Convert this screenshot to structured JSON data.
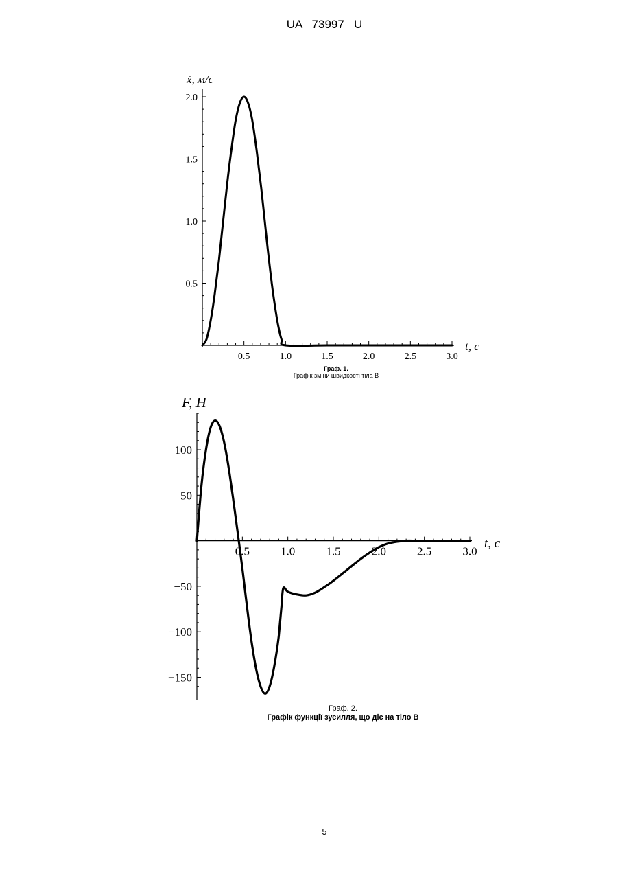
{
  "header": {
    "text": "UA   73997   U"
  },
  "page_number": "5",
  "chart_data": [
    {
      "type": "line",
      "ylabel": "ẋ, м/с",
      "xlabel": "t, c",
      "x_ticks": [
        "0.5",
        "1.0",
        "1.5",
        "2.0",
        "2.5",
        "3.0"
      ],
      "y_ticks": [
        "0.5",
        "1.0",
        "1.5",
        "2.0"
      ],
      "xlim": [
        0,
        3.0
      ],
      "ylim": [
        0,
        2.0
      ],
      "x": [
        0,
        0.05,
        0.1,
        0.15,
        0.2,
        0.25,
        0.3,
        0.35,
        0.4,
        0.45,
        0.5,
        0.55,
        0.6,
        0.65,
        0.7,
        0.75,
        0.8,
        0.85,
        0.9,
        0.95,
        1.0,
        1.5,
        2.0,
        2.5,
        3.0
      ],
      "values": [
        0,
        0.05,
        0.2,
        0.42,
        0.69,
        1.0,
        1.31,
        1.58,
        1.81,
        1.95,
        2.0,
        1.95,
        1.81,
        1.58,
        1.31,
        1.0,
        0.69,
        0.42,
        0.2,
        0.05,
        0,
        0,
        0,
        0,
        0
      ],
      "caption": [
        "Граф. 1.",
        "Графік зміни швидкості тіла В"
      ]
    },
    {
      "type": "line",
      "ylabel": "F, H",
      "xlabel": "t, c",
      "x_ticks": [
        "0.5",
        "1.0",
        "1.5",
        "2.0",
        "2.5",
        "3.0"
      ],
      "y_ticks": [
        "100",
        "50",
        "−50",
        "−100",
        "−150"
      ],
      "xlim": [
        0,
        3.0
      ],
      "ylim": [
        -170,
        140
      ],
      "x": [
        0,
        0.05,
        0.1,
        0.15,
        0.2,
        0.25,
        0.3,
        0.35,
        0.4,
        0.45,
        0.5,
        0.55,
        0.6,
        0.65,
        0.7,
        0.75,
        0.8,
        0.85,
        0.9,
        0.93,
        0.95,
        1.0,
        1.1,
        1.2,
        1.3,
        1.4,
        1.5,
        1.6,
        1.7,
        1.8,
        1.9,
        2.0,
        2.1,
        2.2,
        2.3,
        2.4,
        2.5,
        2.7,
        3.0
      ],
      "values": [
        0,
        60,
        100,
        124,
        132,
        126,
        108,
        80,
        45,
        8,
        -30,
        -72,
        -110,
        -140,
        -160,
        -168,
        -160,
        -138,
        -105,
        -72,
        -52,
        -56,
        -59,
        -60,
        -57,
        -51,
        -44,
        -36,
        -28,
        -20,
        -13,
        -7,
        -3,
        -1,
        0,
        0,
        0,
        0,
        0
      ],
      "caption": [
        "Граф. 2.",
        "Графік функції зусилля, що діє на тіло В"
      ]
    }
  ]
}
